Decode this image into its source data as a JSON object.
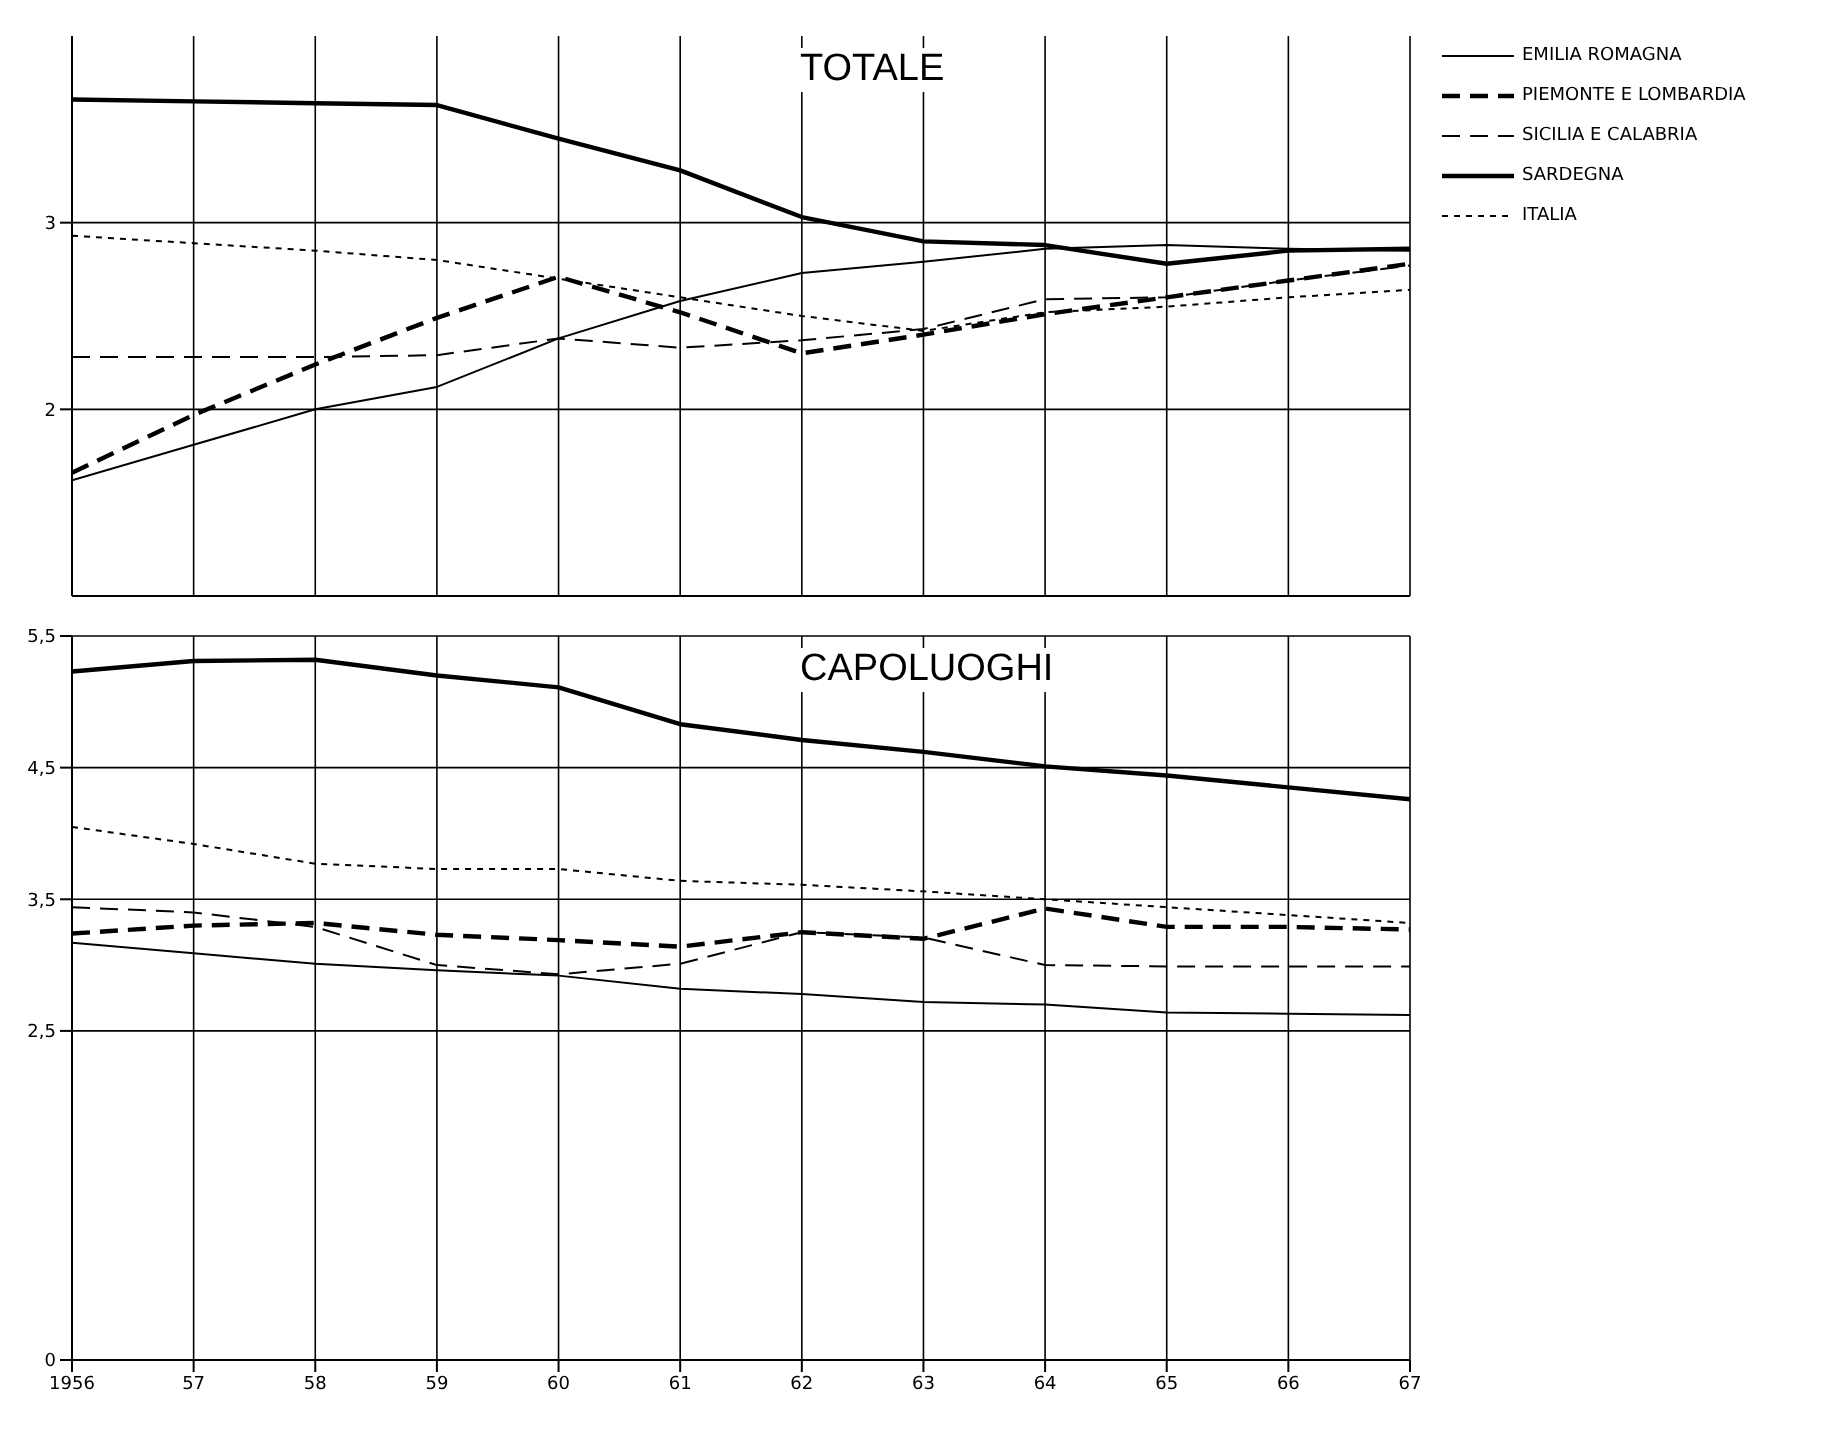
{
  "chart_data": [
    {
      "type": "line",
      "title": "TOTALE",
      "x": [
        1956,
        1957,
        1958,
        1959,
        1960,
        1961,
        1962,
        1963,
        1964,
        1965,
        1966,
        1967
      ],
      "xlim": [
        1956,
        1967
      ],
      "xticks": [
        1956,
        1957,
        1958,
        1959,
        1960,
        1961,
        1962,
        1963,
        1964,
        1965,
        1966,
        1967
      ],
      "ylim": [
        1,
        4
      ],
      "yticks": [
        2,
        3
      ],
      "tick_labels": "y",
      "grid": true,
      "legend": "top right",
      "series": [
        {
          "name": "EMILIA ROMAGNA",
          "color": "#000000",
          "line_style": "solid",
          "values": [
            1.62,
            1.81,
            2.0,
            2.12,
            2.38,
            2.58,
            2.73,
            2.79,
            2.86,
            2.88,
            2.86,
            2.85
          ]
        },
        {
          "name": "PIEMONTE E LOMBARDIA",
          "color": "#000000",
          "line_style": "dashed",
          "values": [
            1.66,
            1.97,
            2.24,
            2.49,
            2.71,
            2.52,
            2.3,
            2.4,
            2.51,
            2.6,
            2.69,
            2.78
          ]
        },
        {
          "name": "SICILIA E CALABRIA",
          "color": "#000000",
          "line_style": "dashed",
          "values": [
            2.28,
            2.28,
            2.28,
            2.29,
            2.38,
            2.33,
            2.37,
            2.43,
            2.59,
            2.6,
            2.69,
            2.77
          ]
        },
        {
          "name": "SARDEGNA",
          "color": "#000000",
          "line_style": "solid",
          "values": [
            3.66,
            3.65,
            3.64,
            3.63,
            3.45,
            3.28,
            3.03,
            2.9,
            2.88,
            2.78,
            2.85,
            2.86
          ]
        },
        {
          "name": "ITALIA",
          "color": "#000000",
          "line_style": "dotted",
          "values": [
            2.93,
            2.89,
            2.85,
            2.8,
            2.7,
            2.6,
            2.5,
            2.42,
            2.52,
            2.55,
            2.6,
            2.64
          ]
        }
      ]
    },
    {
      "type": "line",
      "title": "CAPOLUOGHI",
      "x": [
        1956,
        1957,
        1958,
        1959,
        1960,
        1961,
        1962,
        1963,
        1964,
        1965,
        1966,
        1967
      ],
      "xlim": [
        1956,
        1967
      ],
      "xticks": [
        1956,
        {
          "value": 1957,
          "label": "57"
        },
        {
          "value": 1958,
          "label": "58"
        },
        {
          "value": 1959,
          "label": "59"
        },
        {
          "value": 1960,
          "label": "60"
        },
        {
          "value": 1961,
          "label": "61"
        },
        {
          "value": 1962,
          "label": "62"
        },
        {
          "value": 1963,
          "label": "63"
        },
        {
          "value": 1964,
          "label": "64"
        },
        {
          "value": 1965,
          "label": "65"
        },
        {
          "value": 1966,
          "label": "66"
        },
        {
          "value": 1967,
          "label": "67"
        }
      ],
      "ylim": [
        0,
        5.5
      ],
      "yticks": [
        0,
        {
          "value": 2.5,
          "label": "2,5"
        },
        {
          "value": 3.5,
          "label": "3,5"
        },
        {
          "value": 4.5,
          "label": "4,5"
        },
        {
          "value": 5.5,
          "label": "5,5"
        }
      ],
      "grid": true,
      "series": [
        {
          "color": "#000000",
          "line_style": "solid",
          "values": [
            3.17,
            3.09,
            3.01,
            2.96,
            2.92,
            2.82,
            2.78,
            2.72,
            2.7,
            2.64,
            2.63,
            2.62
          ]
        },
        {
          "color": "#000000",
          "line_style": "dashed",
          "values": [
            3.24,
            3.3,
            3.32,
            3.23,
            3.19,
            3.14,
            3.25,
            3.2,
            3.43,
            3.29,
            3.29,
            3.27
          ]
        },
        {
          "color": "#000000",
          "line_style": "dashed",
          "values": [
            3.44,
            3.4,
            3.29,
            3.0,
            2.93,
            3.01,
            3.25,
            3.21,
            3.0,
            2.99,
            2.99,
            2.99
          ]
        },
        {
          "color": "#000000",
          "line_style": "solid",
          "values": [
            5.23,
            5.31,
            5.32,
            5.2,
            5.11,
            4.83,
            4.71,
            4.62,
            4.51,
            4.44,
            4.35,
            4.26
          ]
        },
        {
          "color": "#000000",
          "line_style": "dotted",
          "values": [
            4.05,
            3.92,
            3.77,
            3.73,
            3.73,
            3.64,
            3.61,
            3.56,
            3.5,
            3.44,
            3.38,
            3.32
          ]
        }
      ]
    }
  ]
}
